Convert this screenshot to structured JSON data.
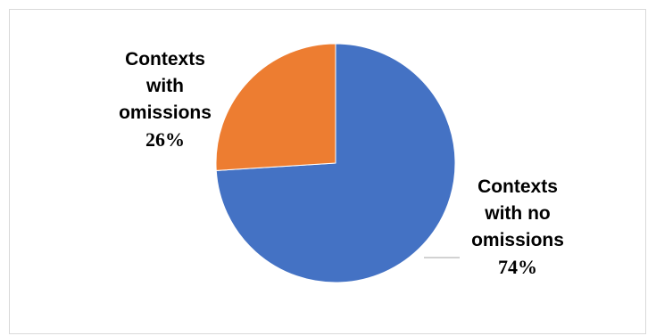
{
  "chart_data": {
    "type": "pie",
    "title": "",
    "slices": [
      {
        "label_lines": [
          "Contexts",
          "with no",
          "omissions"
        ],
        "percent_label": "74%",
        "value": 74,
        "color": "#4472c4"
      },
      {
        "label_lines": [
          "Contexts",
          "with",
          "omissions"
        ],
        "percent_label": "26%",
        "value": 26,
        "color": "#ed7d31"
      }
    ],
    "start_angle_deg": 0,
    "direction": "clockwise",
    "legend": "none",
    "leader_line_color": "#a6a6a6"
  }
}
